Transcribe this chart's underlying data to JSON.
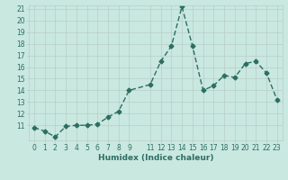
{
  "x": [
    0,
    1,
    2,
    3,
    4,
    5,
    6,
    7,
    8,
    9,
    11,
    12,
    13,
    14,
    15,
    16,
    17,
    18,
    19,
    20,
    21,
    22,
    23
  ],
  "y": [
    10.8,
    10.5,
    10.0,
    10.9,
    11.0,
    11.0,
    11.1,
    11.7,
    12.2,
    14.0,
    14.5,
    16.5,
    17.8,
    21.2,
    17.8,
    14.0,
    14.4,
    15.3,
    15.1,
    16.3,
    16.5,
    15.5,
    13.2
  ],
  "xlabel": "Humidex (Indice chaleur)",
  "ylabel": "",
  "ylim": [
    10,
    21
  ],
  "xlim": [
    -0.5,
    23.5
  ],
  "yticks": [
    11,
    12,
    13,
    14,
    15,
    16,
    17,
    18,
    19,
    20,
    21
  ],
  "xtick_vals": [
    0,
    1,
    2,
    3,
    4,
    5,
    6,
    7,
    8,
    9,
    11,
    12,
    13,
    14,
    15,
    16,
    17,
    18,
    19,
    20,
    21,
    22,
    23
  ],
  "xtick_labels": [
    "0",
    "1",
    "2",
    "3",
    "4",
    "5",
    "6",
    "7",
    "8",
    "9",
    "11",
    "12",
    "13",
    "14",
    "15",
    "16",
    "17",
    "18",
    "19",
    "20",
    "21",
    "22",
    "23"
  ],
  "line_color": "#2d6e62",
  "bg_color": "#c9e8e0",
  "grid_color": "#b8cdc8",
  "marker": "D",
  "markersize": 2.5,
  "linewidth": 1.0,
  "tick_fontsize": 5.5,
  "xlabel_fontsize": 6.5
}
